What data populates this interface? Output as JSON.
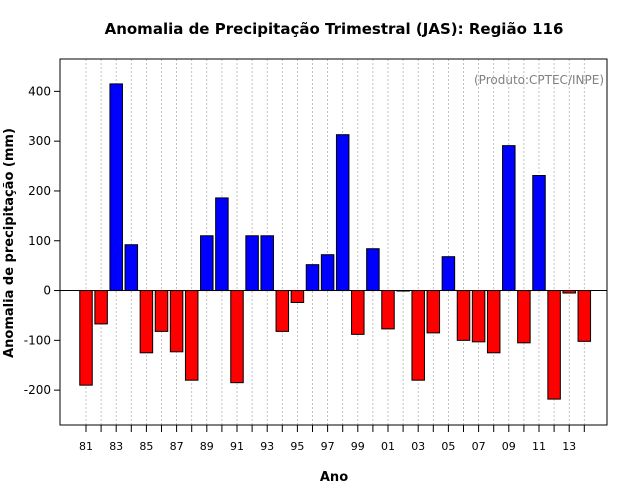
{
  "chart_data": {
    "type": "bar",
    "title": "Anomalia de Precipitação Trimestral (JAS): Região 116",
    "xlabel": "Ano",
    "ylabel": "Anomalia de precipitação (mm)",
    "watermark": "(Produto:CPTEC/INPE)",
    "ylim": [
      -270,
      465
    ],
    "yticks": [
      -200,
      -100,
      0,
      100,
      200,
      300,
      400
    ],
    "grid": "vertical dotted",
    "colors": {
      "positive": "#0000ff",
      "negative": "#ff0000"
    },
    "categories": [
      "1981",
      "1982",
      "1983",
      "1984",
      "1985",
      "1986",
      "1987",
      "1988",
      "1989",
      "1990",
      "1991",
      "1992",
      "1993",
      "1994",
      "1995",
      "1996",
      "1997",
      "1998",
      "1999",
      "2000",
      "2001",
      "2002",
      "2003",
      "2004",
      "2005",
      "2006",
      "2007",
      "2008",
      "2009",
      "2010",
      "2011",
      "2012",
      "2013",
      "2014"
    ],
    "tick_labels": [
      "81",
      "",
      "83",
      "",
      "85",
      "",
      "87",
      "",
      "89",
      "",
      "91",
      "",
      "93",
      "",
      "95",
      "",
      "97",
      "",
      "99",
      "",
      "01",
      "",
      "03",
      "",
      "05",
      "",
      "07",
      "",
      "09",
      "",
      "11",
      "",
      "13",
      ""
    ],
    "values": [
      -190,
      -67,
      415,
      92,
      -125,
      -82,
      -123,
      -180,
      110,
      186,
      -185,
      110,
      110,
      -82,
      -24,
      52,
      72,
      313,
      -88,
      84,
      -77,
      0,
      -180,
      -85,
      68,
      -100,
      -103,
      -125,
      291,
      -105,
      231,
      -218,
      -5,
      -102
    ]
  }
}
